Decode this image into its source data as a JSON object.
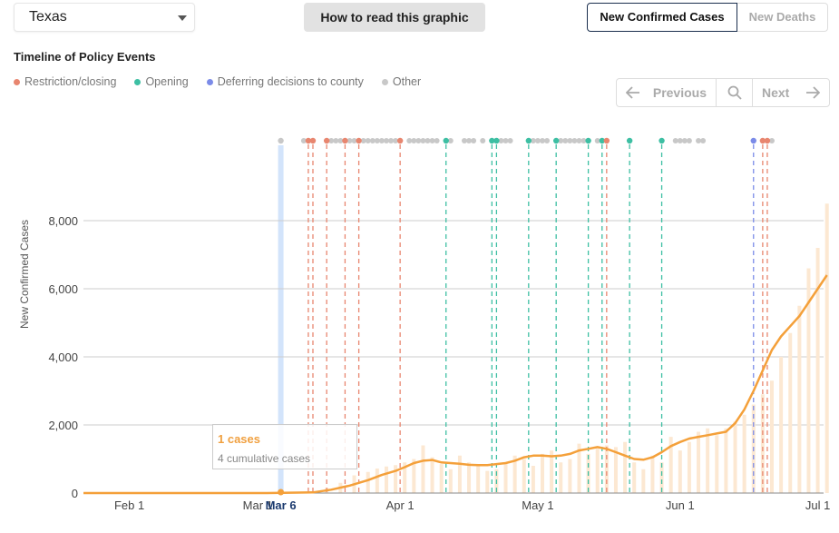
{
  "controls": {
    "state": "Texas",
    "howto_label": "How to read this graphic",
    "metric_active": "New Confirmed Cases",
    "metric_inactive": "New Deaths"
  },
  "timeline": {
    "title": "Timeline of Policy Events",
    "legend": [
      {
        "label": "Restriction/closing",
        "color": "#e8866f"
      },
      {
        "label": "Opening",
        "color": "#3dbfa3"
      },
      {
        "label": "Deferring decisions to county",
        "color": "#7b8be8"
      },
      {
        "label": "Other",
        "color": "#c8c8c8"
      }
    ],
    "nav": {
      "previous": "Previous",
      "next": "Next"
    }
  },
  "colors": {
    "line": "#f4a03a",
    "bars": "#fce8d2",
    "highlight": "#d3e4fb",
    "grid": "#cccccc"
  },
  "tooltip": {
    "cases": "1 cases",
    "cumulative": "4 cumulative cases",
    "date_label": "Mar 6"
  },
  "chart_data": {
    "type": "bar",
    "ylabel": "New Confirmed Cases",
    "ylim": [
      0,
      9500
    ],
    "yticks": [
      0,
      2000,
      4000,
      6000,
      8000
    ],
    "ytick_labels": [
      "0",
      "2,000",
      "4,000",
      "6,000",
      "8,000"
    ],
    "xticks": [
      {
        "day": 10,
        "label": "Feb 1"
      },
      {
        "day": 38,
        "label": "Mar 1"
      },
      {
        "day": 69,
        "label": "Apr 1"
      },
      {
        "day": 99,
        "label": "May 1"
      },
      {
        "day": 130,
        "label": "Jun 1"
      },
      {
        "day": 160,
        "label": "Jul 1"
      }
    ],
    "highlight_day": 43,
    "series": [
      {
        "name": "Daily cases",
        "x": [
          43,
          47,
          50,
          53,
          56,
          59,
          62,
          64,
          66,
          68,
          70,
          72,
          74,
          76,
          78,
          80,
          82,
          84,
          86,
          88,
          90,
          92,
          94,
          96,
          98,
          100,
          102,
          104,
          106,
          108,
          110,
          112,
          114,
          116,
          118,
          120,
          122,
          124,
          126,
          128,
          130,
          132,
          134,
          136,
          138,
          140,
          142,
          144,
          146,
          148,
          150,
          152,
          154,
          156,
          158,
          160,
          162
        ],
        "values": [
          1,
          5,
          40,
          150,
          300,
          520,
          620,
          720,
          780,
          820,
          900,
          1000,
          1400,
          1050,
          850,
          700,
          1100,
          900,
          800,
          650,
          700,
          900,
          1100,
          1000,
          800,
          1150,
          1250,
          900,
          1000,
          1450,
          1150,
          1300,
          1400,
          1350,
          1500,
          900,
          700,
          1100,
          900,
          1650,
          1250,
          1500,
          1800,
          1900,
          1700,
          1900,
          2100,
          2300,
          2600,
          2900,
          3300,
          4000,
          4700,
          5500,
          6600,
          7200,
          8500
        ]
      },
      {
        "name": "7-day average",
        "x": [
          0,
          40,
          50,
          54,
          58,
          62,
          65,
          68,
          70,
          72,
          74,
          76,
          78,
          80,
          82,
          84,
          86,
          88,
          90,
          92,
          94,
          96,
          98,
          100,
          102,
          104,
          106,
          108,
          110,
          112,
          114,
          116,
          118,
          120,
          122,
          124,
          126,
          128,
          130,
          132,
          134,
          136,
          138,
          140,
          142,
          144,
          146,
          148,
          150,
          152,
          154,
          156,
          158,
          160,
          162
        ],
        "values": [
          0,
          0,
          20,
          100,
          220,
          380,
          530,
          650,
          760,
          880,
          950,
          970,
          900,
          880,
          860,
          830,
          820,
          820,
          850,
          880,
          950,
          1050,
          1100,
          1100,
          1080,
          1100,
          1150,
          1250,
          1300,
          1350,
          1300,
          1200,
          1100,
          1000,
          980,
          1050,
          1200,
          1380,
          1500,
          1600,
          1650,
          1700,
          1750,
          1800,
          2050,
          2450,
          3000,
          3600,
          4200,
          4600,
          4900,
          5200,
          5600,
          6000,
          6400
        ]
      }
    ],
    "events": [
      {
        "day": 43,
        "type": "Other"
      },
      {
        "day": 49,
        "type": "Restriction/closing"
      },
      {
        "day": 50,
        "type": "Restriction/closing"
      },
      {
        "day": 53,
        "type": "Restriction/closing"
      },
      {
        "day": 57,
        "type": "Restriction/closing"
      },
      {
        "day": 60,
        "type": "Restriction/closing"
      },
      {
        "day": 69,
        "type": "Restriction/closing"
      },
      {
        "day": 79,
        "type": "Opening"
      },
      {
        "day": 89,
        "type": "Opening"
      },
      {
        "day": 90,
        "type": "Opening"
      },
      {
        "day": 97,
        "type": "Opening"
      },
      {
        "day": 103,
        "type": "Opening"
      },
      {
        "day": 110,
        "type": "Opening"
      },
      {
        "day": 113,
        "type": "Opening"
      },
      {
        "day": 114,
        "type": "Restriction/closing"
      },
      {
        "day": 119,
        "type": "Opening"
      },
      {
        "day": 126,
        "type": "Opening"
      },
      {
        "day": 146,
        "type": "Deferring decisions to county"
      },
      {
        "day": 148,
        "type": "Restriction/closing"
      },
      {
        "day": 149,
        "type": "Restriction/closing"
      }
    ],
    "other_event_days": [
      48,
      49,
      50,
      53,
      54,
      55,
      56,
      57,
      58,
      59,
      61,
      62,
      63,
      64,
      65,
      66,
      67,
      68,
      69,
      71,
      72,
      73,
      74,
      75,
      76,
      77,
      80,
      83,
      84,
      85,
      87,
      90,
      91,
      92,
      93,
      98,
      99,
      100,
      101,
      104,
      105,
      106,
      107,
      108,
      109,
      110,
      112,
      114,
      129,
      130,
      131,
      132,
      134,
      135,
      150
    ]
  }
}
